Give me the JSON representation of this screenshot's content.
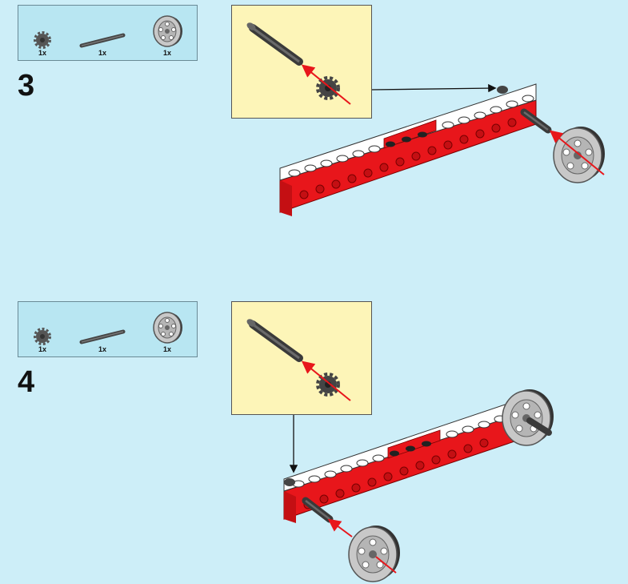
{
  "steps": [
    {
      "number": "3",
      "parts": [
        {
          "icon": "bush-gear-icon",
          "qty": "1x"
        },
        {
          "icon": "axle-icon",
          "qty": "1x"
        },
        {
          "icon": "wheel-icon",
          "qty": "1x"
        }
      ]
    },
    {
      "number": "4",
      "parts": [
        {
          "icon": "bush-gear-icon",
          "qty": "1x"
        },
        {
          "icon": "axle-icon",
          "qty": "1x"
        },
        {
          "icon": "wheel-icon",
          "qty": "1x"
        }
      ]
    }
  ],
  "colors": {
    "background": "#cdeef8",
    "parts_box": "#b8e6f2",
    "callout": "#fdf5b8",
    "brick_red": "#e8161b",
    "brick_white": "#ffffff",
    "axle_gray": "#555555",
    "wheel_gray": "#c8c8c8",
    "arrow_red": "#e8161b"
  }
}
